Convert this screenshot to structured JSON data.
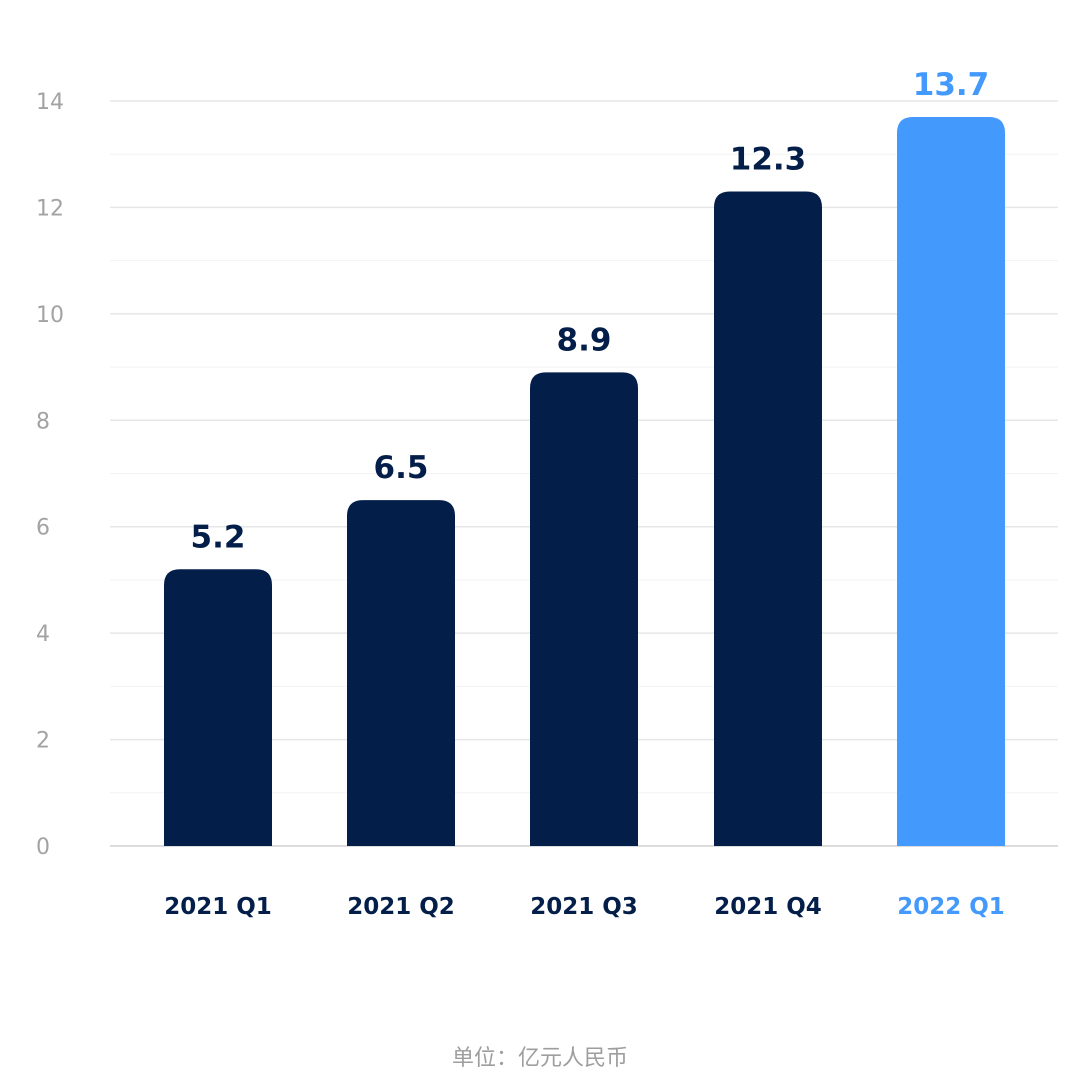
{
  "chart_data": {
    "type": "bar",
    "categories": [
      "2021 Q1",
      "2021 Q2",
      "2021 Q3",
      "2021 Q4",
      "2022 Q1"
    ],
    "values": [
      5.2,
      6.5,
      8.9,
      12.3,
      13.7
    ],
    "value_labels": [
      "5.2",
      "6.5",
      "8.9",
      "12.3",
      "13.7"
    ],
    "y_ticks": [
      "0",
      "2",
      "4",
      "6",
      "8",
      "10",
      "12",
      "14"
    ],
    "ylim": [
      0,
      14
    ],
    "grid": true,
    "colors": {
      "default_bar": "#041e4a",
      "highlight_bar": "#4499fc",
      "highlight_index": 4
    },
    "note": "单位：亿元人民币"
  }
}
